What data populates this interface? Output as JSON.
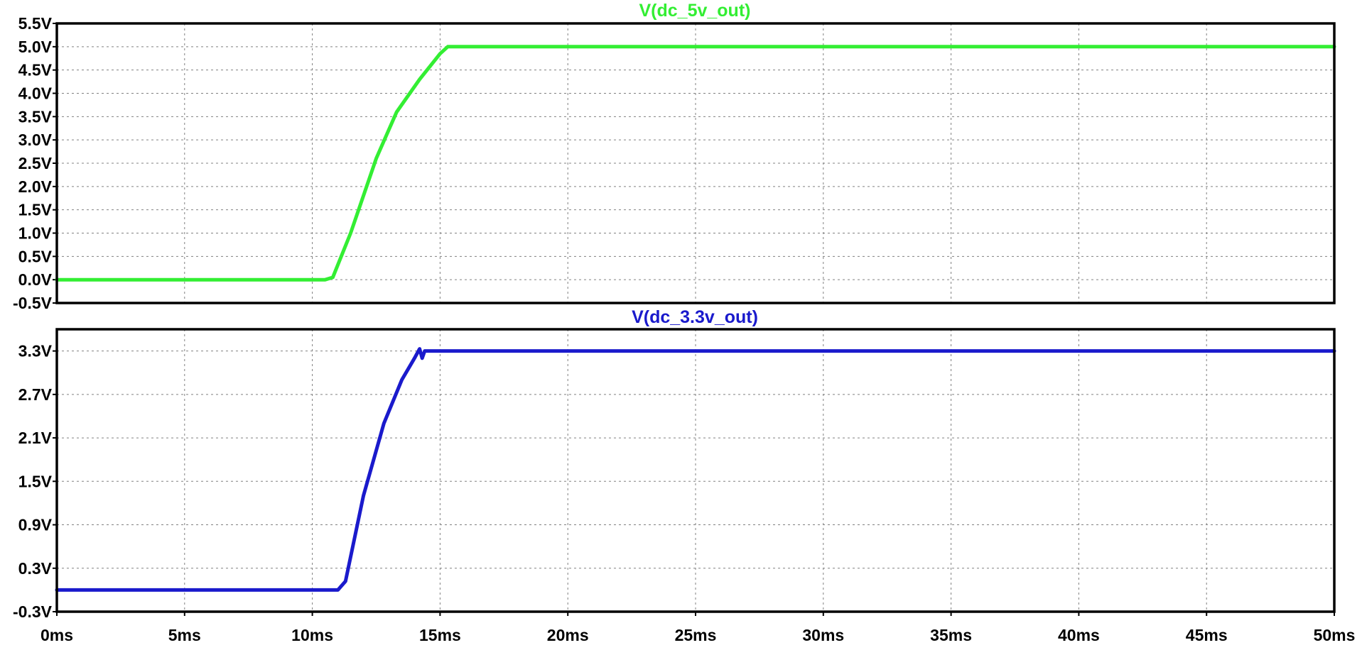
{
  "chart_data": [
    {
      "type": "line",
      "title": "V(dc_5v_out)",
      "xlabel": "",
      "ylabel": "",
      "xlim": [
        0,
        50
      ],
      "ylim": [
        -0.5,
        5.5
      ],
      "x_ticks": [
        "0ms",
        "5ms",
        "10ms",
        "15ms",
        "20ms",
        "25ms",
        "30ms",
        "35ms",
        "40ms",
        "45ms",
        "50ms"
      ],
      "y_ticks": [
        "-0.5V",
        "0.0V",
        "0.5V",
        "1.0V",
        "1.5V",
        "2.0V",
        "2.5V",
        "3.0V",
        "3.5V",
        "4.0V",
        "4.5V",
        "5.0V",
        "5.5V"
      ],
      "grid": true,
      "color": "#33ee33",
      "series": [
        {
          "name": "V(dc_5v_out)",
          "x": [
            0,
            10.5,
            10.8,
            11.5,
            12.5,
            13.3,
            14.2,
            15.0,
            15.3,
            15.6,
            50
          ],
          "y": [
            0.0,
            0.0,
            0.05,
            1.0,
            2.6,
            3.6,
            4.3,
            4.85,
            5.0,
            5.0,
            5.0
          ]
        }
      ]
    },
    {
      "type": "line",
      "title": "V(dc_3.3v_out)",
      "xlabel": "",
      "ylabel": "",
      "xlim": [
        0,
        50
      ],
      "ylim": [
        -0.3,
        3.6
      ],
      "x_ticks": [
        "0ms",
        "5ms",
        "10ms",
        "15ms",
        "20ms",
        "25ms",
        "30ms",
        "35ms",
        "40ms",
        "45ms",
        "50ms"
      ],
      "y_ticks": [
        "-0.3V",
        "0.3V",
        "0.9V",
        "1.5V",
        "2.1V",
        "2.7V",
        "3.3V"
      ],
      "grid": true,
      "color": "#1a1acc",
      "series": [
        {
          "name": "V(dc_3.3v_out)",
          "x": [
            0,
            11.0,
            11.3,
            12.0,
            12.8,
            13.5,
            14.0,
            14.2,
            14.3,
            14.4,
            50
          ],
          "y": [
            0.0,
            0.0,
            0.12,
            1.3,
            2.3,
            2.9,
            3.2,
            3.33,
            3.2,
            3.3,
            3.3
          ]
        }
      ]
    }
  ]
}
